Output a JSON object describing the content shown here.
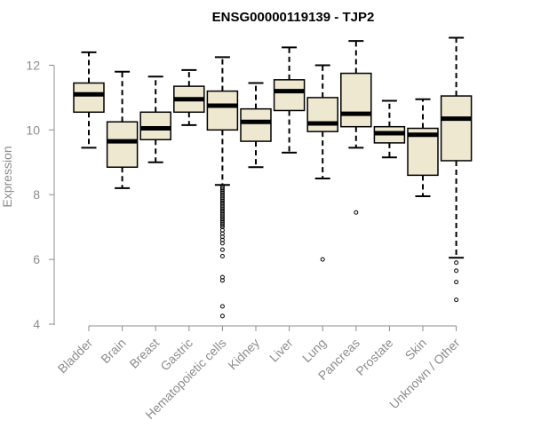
{
  "chart_data": {
    "type": "boxplot",
    "title": "ENSG00000119139 - TJP2",
    "xlabel": "",
    "ylabel": "Expression",
    "ylim": [
      4,
      13
    ],
    "yticks": [
      4,
      6,
      8,
      10,
      12
    ],
    "grid": false,
    "legend": "none",
    "box_color": "#ede8cf",
    "categories": [
      "Bladder",
      "Brain",
      "Breast",
      "Gastric",
      "Hematopoietic cells",
      "Kidney",
      "Liver",
      "Lung",
      "Pancreas",
      "Prostate",
      "Skin",
      "Unknown / Other"
    ],
    "series": [
      {
        "name": "Bladder",
        "whisker_low": 9.45,
        "q1": 10.55,
        "median": 11.1,
        "q3": 11.45,
        "whisker_high": 12.4,
        "outliers": []
      },
      {
        "name": "Brain",
        "whisker_low": 8.2,
        "q1": 8.85,
        "median": 9.65,
        "q3": 10.25,
        "whisker_high": 11.8,
        "outliers": []
      },
      {
        "name": "Breast",
        "whisker_low": 9.0,
        "q1": 9.7,
        "median": 10.05,
        "q3": 10.55,
        "whisker_high": 11.65,
        "outliers": []
      },
      {
        "name": "Gastric",
        "whisker_low": 10.15,
        "q1": 10.55,
        "median": 10.95,
        "q3": 11.35,
        "whisker_high": 11.85,
        "outliers": []
      },
      {
        "name": "Hematopoietic cells",
        "whisker_low": 8.3,
        "q1": 10.0,
        "median": 10.75,
        "q3": 11.2,
        "whisker_high": 12.25,
        "outliers": [
          8.25,
          8.2,
          8.15,
          8.1,
          8.05,
          8.0,
          7.95,
          7.9,
          7.85,
          7.8,
          7.75,
          7.7,
          7.65,
          7.6,
          7.55,
          7.5,
          7.45,
          7.4,
          7.35,
          7.3,
          7.25,
          7.2,
          7.15,
          7.1,
          7.05,
          7.0,
          6.9,
          6.8,
          6.7,
          6.6,
          6.5,
          6.3,
          6.1,
          5.45,
          5.35,
          4.55,
          4.25
        ]
      },
      {
        "name": "Kidney",
        "whisker_low": 8.85,
        "q1": 9.65,
        "median": 10.25,
        "q3": 10.65,
        "whisker_high": 11.45,
        "outliers": []
      },
      {
        "name": "Liver",
        "whisker_low": 9.3,
        "q1": 10.6,
        "median": 11.2,
        "q3": 11.55,
        "whisker_high": 12.55,
        "outliers": []
      },
      {
        "name": "Lung",
        "whisker_low": 8.5,
        "q1": 9.95,
        "median": 10.2,
        "q3": 11.0,
        "whisker_high": 12.0,
        "outliers": [
          6.0
        ]
      },
      {
        "name": "Pancreas",
        "whisker_low": 9.45,
        "q1": 10.1,
        "median": 10.5,
        "q3": 11.75,
        "whisker_high": 12.75,
        "outliers": [
          7.45
        ]
      },
      {
        "name": "Prostate",
        "whisker_low": 9.15,
        "q1": 9.6,
        "median": 9.9,
        "q3": 10.1,
        "whisker_high": 10.9,
        "outliers": []
      },
      {
        "name": "Skin",
        "whisker_low": 7.95,
        "q1": 8.6,
        "median": 9.85,
        "q3": 10.05,
        "whisker_high": 10.95,
        "outliers": []
      },
      {
        "name": "Unknown / Other",
        "whisker_low": 6.05,
        "q1": 9.05,
        "median": 10.35,
        "q3": 11.05,
        "whisker_high": 12.85,
        "outliers": [
          5.9,
          5.65,
          5.3,
          4.75
        ]
      }
    ]
  }
}
